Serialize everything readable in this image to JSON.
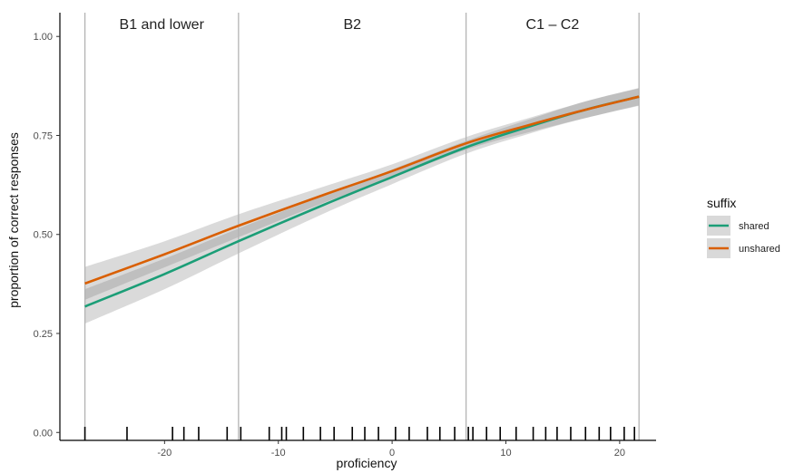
{
  "chart_data": {
    "type": "line",
    "xlabel": "proficiency",
    "ylabel": "proportion of correct responses",
    "xlim": [
      -29.2,
      23.2
    ],
    "ylim": [
      -0.02,
      1.06
    ],
    "x_ticks": [
      -20,
      -10,
      0,
      10,
      20
    ],
    "x_tick_labels": [
      "-20",
      "-10",
      "0",
      "10",
      "20"
    ],
    "y_ticks": [
      0,
      0.25,
      0.5,
      0.75,
      1
    ],
    "y_tick_labels": [
      "0.00",
      "0.25",
      "0.50",
      "0.75",
      "1.00"
    ],
    "grid": false,
    "legend": {
      "title": "suffix",
      "position": "right"
    },
    "regions": [
      {
        "label": "B1 and lower",
        "x_start": -27,
        "x_end": -13.5
      },
      {
        "label": "B2",
        "x_start": -13.5,
        "x_end": 6.5
      },
      {
        "label": "C1 – C2",
        "x_start": 6.5,
        "x_end": 21.7
      }
    ],
    "boundaries": [
      -27,
      -13.5,
      6.5,
      21.7
    ],
    "series": [
      {
        "name": "shared",
        "color": "#1b9e77",
        "x": [
          -27,
          -20,
          -13.5,
          -6,
          0,
          6.5,
          12,
          17,
          21.7
        ],
        "values": [
          0.318,
          0.4,
          0.483,
          0.575,
          0.645,
          0.72,
          0.772,
          0.815,
          0.848
        ],
        "lower": [
          0.275,
          0.362,
          0.452,
          0.553,
          0.627,
          0.704,
          0.754,
          0.794,
          0.825
        ],
        "upper": [
          0.362,
          0.439,
          0.515,
          0.598,
          0.664,
          0.736,
          0.79,
          0.836,
          0.87
        ]
      },
      {
        "name": "unshared",
        "color": "#d95f02",
        "x": [
          -27,
          -20,
          -13.5,
          -6,
          0,
          6.5,
          12,
          17,
          21.7
        ],
        "values": [
          0.376,
          0.45,
          0.522,
          0.6,
          0.66,
          0.73,
          0.776,
          0.815,
          0.848
        ],
        "lower": [
          0.335,
          0.417,
          0.493,
          0.58,
          0.643,
          0.714,
          0.758,
          0.794,
          0.826
        ],
        "upper": [
          0.418,
          0.483,
          0.551,
          0.621,
          0.677,
          0.746,
          0.794,
          0.836,
          0.869
        ]
      }
    ],
    "rug_x": [
      -27,
      -23.3,
      -19.3,
      -18.3,
      -17,
      -14.5,
      -13.3,
      -10.8,
      -9.7,
      -9.3,
      -7.8,
      -6.3,
      -5.1,
      -3.5,
      -2.4,
      -1.2,
      0.3,
      1.5,
      3.1,
      4.2,
      5.5,
      6.7,
      7.1,
      8.3,
      9.5,
      10.9,
      12.4,
      13.5,
      14.5,
      15.7,
      17,
      18.2,
      19.2,
      20.4,
      21.3
    ]
  }
}
